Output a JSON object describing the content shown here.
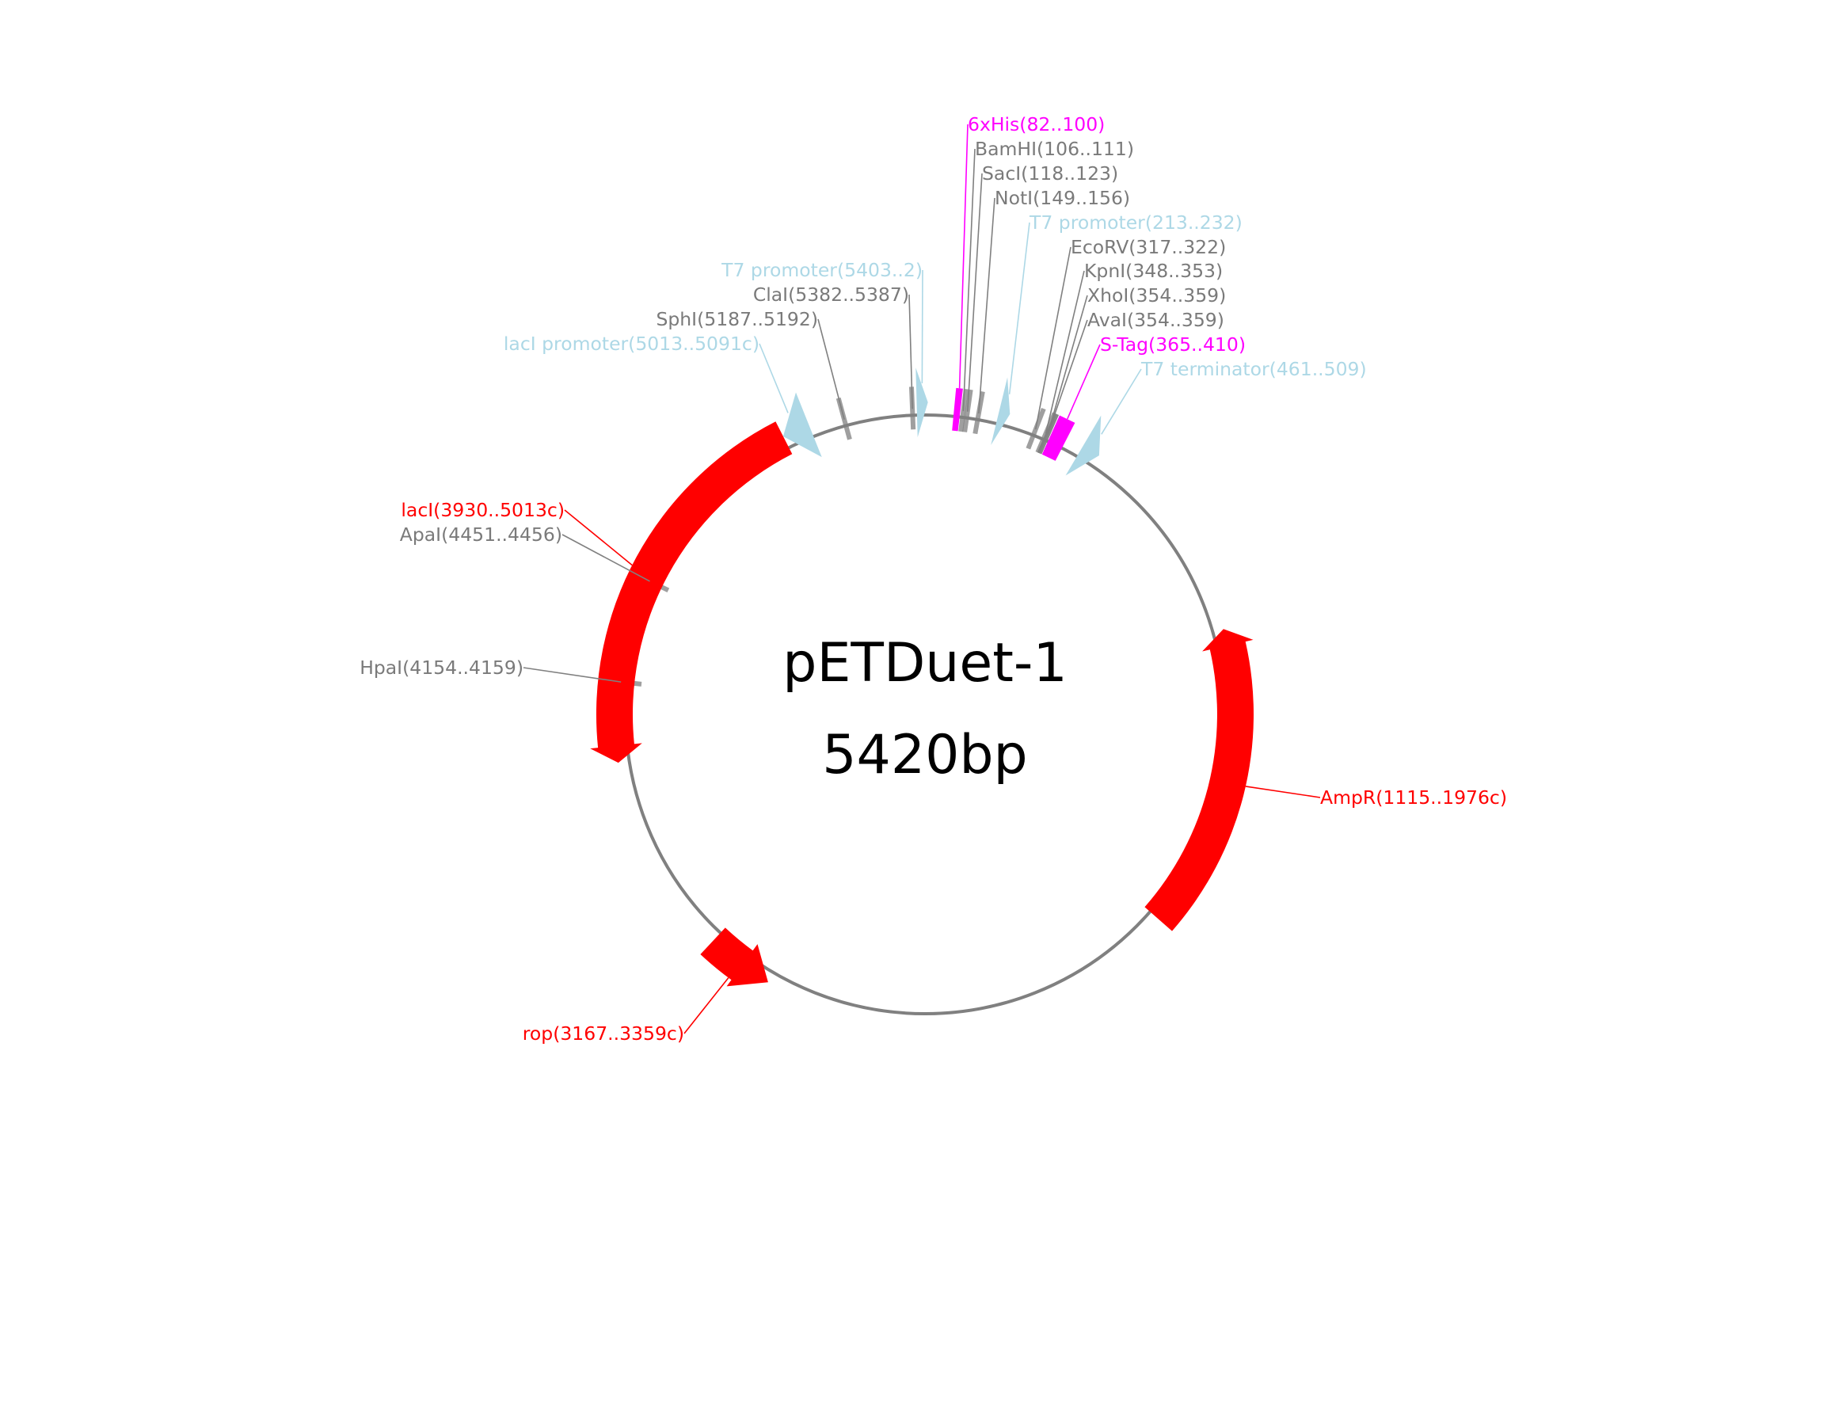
{
  "plasmid": {
    "name": "pETDuet-1",
    "size_label": "5420bp",
    "length_bp": 5420
  },
  "colors": {
    "backbone": "#808080",
    "cds": "#ff0000",
    "regulatory": "#add8e6",
    "tag": "#ff00ff",
    "restriction_site": "#808080"
  },
  "features": [
    {
      "id": "6xhis",
      "label": "6xHis(82..100)",
      "start": 82,
      "end": 100,
      "strand": 1,
      "kind": "tag"
    },
    {
      "id": "bamhi",
      "label": "BamHI(106..111)",
      "start": 106,
      "end": 111,
      "strand": 0,
      "kind": "site"
    },
    {
      "id": "saci",
      "label": "SacI(118..123)",
      "start": 118,
      "end": 123,
      "strand": 0,
      "kind": "site"
    },
    {
      "id": "noti",
      "label": "NotI(149..156)",
      "start": 149,
      "end": 156,
      "strand": 0,
      "kind": "site"
    },
    {
      "id": "t7-promoter-2",
      "label": "T7 promoter(213..232)",
      "start": 213,
      "end": 232,
      "strand": 1,
      "kind": "regulatory"
    },
    {
      "id": "ecorv",
      "label": "EcoRV(317..322)",
      "start": 317,
      "end": 322,
      "strand": 0,
      "kind": "site"
    },
    {
      "id": "kpni",
      "label": "KpnI(348..353)",
      "start": 348,
      "end": 353,
      "strand": 0,
      "kind": "site"
    },
    {
      "id": "xhoi",
      "label": "XhoI(354..359)",
      "start": 354,
      "end": 359,
      "strand": 0,
      "kind": "site"
    },
    {
      "id": "avai",
      "label": "AvaI(354..359)",
      "start": 354,
      "end": 359,
      "strand": 0,
      "kind": "site"
    },
    {
      "id": "s-tag",
      "label": "S-Tag(365..410)",
      "start": 365,
      "end": 410,
      "strand": 1,
      "kind": "tag"
    },
    {
      "id": "t7-terminator",
      "label": "T7 terminator(461..509)",
      "start": 461,
      "end": 509,
      "strand": 1,
      "kind": "regulatory"
    },
    {
      "id": "ampr",
      "label": "AmpR(1115..1976c)",
      "start": 1115,
      "end": 1976,
      "strand": -1,
      "kind": "cds"
    },
    {
      "id": "rop",
      "label": "rop(3167..3359c)",
      "start": 3167,
      "end": 3359,
      "strand": -1,
      "kind": "cds"
    },
    {
      "id": "hpai",
      "label": "HpaI(4154..4159)",
      "start": 4154,
      "end": 4159,
      "strand": 0,
      "kind": "site"
    },
    {
      "id": "apai",
      "label": "ApaI(4451..4456)",
      "start": 4451,
      "end": 4456,
      "strand": 0,
      "kind": "site"
    },
    {
      "id": "laci",
      "label": "lacI(3930..5013c)",
      "start": 3930,
      "end": 5013,
      "strand": -1,
      "kind": "cds"
    },
    {
      "id": "laci-promoter",
      "label": "lacI promoter(5013..5091c)",
      "start": 5013,
      "end": 5091,
      "strand": -1,
      "kind": "regulatory"
    },
    {
      "id": "sphi",
      "label": "SphI(5187..5192)",
      "start": 5187,
      "end": 5192,
      "strand": 0,
      "kind": "site"
    },
    {
      "id": "clai",
      "label": "ClaI(5382..5387)",
      "start": 5382,
      "end": 5387,
      "strand": 0,
      "kind": "site"
    },
    {
      "id": "t7-promoter-1",
      "label": "T7 promoter(5403..2)",
      "start": 5403,
      "end": 2,
      "strand": 1,
      "kind": "regulatory"
    }
  ]
}
